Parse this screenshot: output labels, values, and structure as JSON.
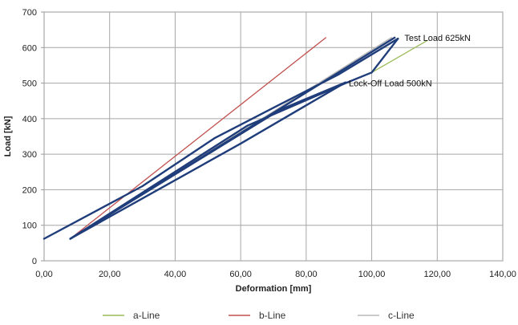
{
  "chart_data": {
    "type": "line",
    "title": "",
    "xlabel": "Deformation [mm]",
    "ylabel": "Load [kN]",
    "xlim": [
      0,
      140
    ],
    "ylim": [
      0,
      700
    ],
    "x_ticks": [
      0,
      20,
      40,
      60,
      80,
      100,
      120,
      140
    ],
    "x_tick_labels": [
      "0,00",
      "20,00",
      "40,00",
      "60,00",
      "80,00",
      "100,00",
      "120,00",
      "140,00"
    ],
    "y_ticks": [
      0,
      100,
      200,
      300,
      400,
      500,
      600,
      700
    ],
    "y_tick_labels": [
      "0",
      "100",
      "200",
      "300",
      "400",
      "500",
      "600",
      "700"
    ],
    "grid": true,
    "legend_position": "bottom",
    "series": [
      {
        "name": "a-Line",
        "color": "#9bbb59",
        "width": 1.3,
        "x": [
          100,
          117
        ],
        "y": [
          530,
          620
        ]
      },
      {
        "name": "b-Line",
        "color": "#c0504d",
        "width": 1.3,
        "x": [
          8,
          86
        ],
        "y": [
          62,
          628
        ]
      },
      {
        "name": "c-Line",
        "color": "#b8b8b8",
        "width": 1.6,
        "x": [
          8,
          106
        ],
        "y": [
          62,
          628
        ]
      },
      {
        "color": "#1f3d7a",
        "width": 2.4,
        "x": [
          0,
          30,
          52,
          72,
          90,
          108
        ],
        "y": [
          62,
          210,
          345,
          440,
          525,
          625
        ]
      },
      {
        "color": "#1f3d7a",
        "width": 2.4,
        "x": [
          108,
          100,
          92,
          62,
          8
        ],
        "y": [
          625,
          530,
          500,
          380,
          62
        ]
      },
      {
        "color": "#1f3d7a",
        "width": 2.4,
        "x": [
          8,
          60,
          92
        ],
        "y": [
          62,
          330,
          502
        ]
      },
      {
        "color": "#1f3d7a",
        "width": 2.4,
        "x": [
          92,
          72,
          8
        ],
        "y": [
          502,
          425,
          62
        ]
      },
      {
        "color": "#1f3d7a",
        "width": 2.4,
        "x": [
          8,
          107
        ],
        "y": [
          62,
          628
        ]
      }
    ],
    "annotations": [
      {
        "text": "Test Load 625kN",
        "x": 110,
        "y": 628
      },
      {
        "text": "Lock-Off Load 500kN",
        "x": 93,
        "y": 500
      }
    ]
  }
}
